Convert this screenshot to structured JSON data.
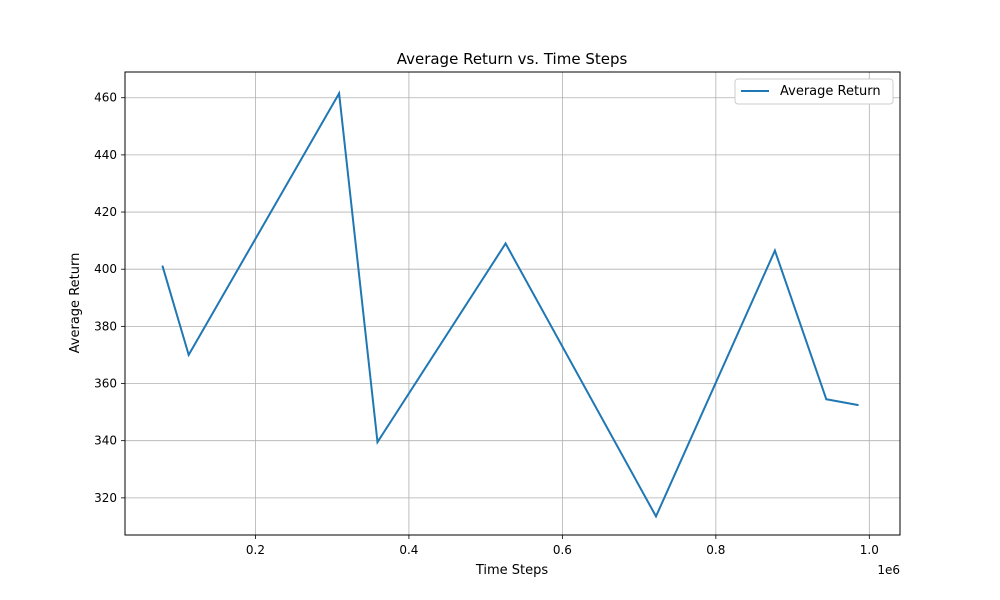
{
  "chart_data": {
    "type": "line",
    "title": "Average Return vs. Time Steps",
    "xlabel": "Time Steps",
    "ylabel": "Average Return",
    "x_offset_label": "1e6",
    "xlim": [
      0.03,
      1.04
    ],
    "ylim": [
      307,
      469
    ],
    "x_ticks": [
      0.2,
      0.4,
      0.6,
      0.8,
      1.0
    ],
    "x_tick_labels": [
      "0.2",
      "0.4",
      "0.6",
      "0.8",
      "1.0"
    ],
    "y_ticks": [
      320,
      340,
      360,
      380,
      400,
      420,
      440,
      460
    ],
    "y_tick_labels": [
      "320",
      "340",
      "360",
      "380",
      "400",
      "420",
      "440",
      "460"
    ],
    "grid": true,
    "legend": {
      "position": "top-right",
      "entries": [
        "Average Return"
      ]
    },
    "series": [
      {
        "name": "Average Return",
        "color": "#1f77b4",
        "x": [
          0.079,
          0.113,
          0.309,
          0.359,
          0.526,
          0.722,
          0.877,
          0.944,
          0.985
        ],
        "y": [
          401,
          370,
          461.5,
          339.5,
          409,
          313.5,
          406.5,
          354.5,
          352.5
        ]
      }
    ]
  }
}
